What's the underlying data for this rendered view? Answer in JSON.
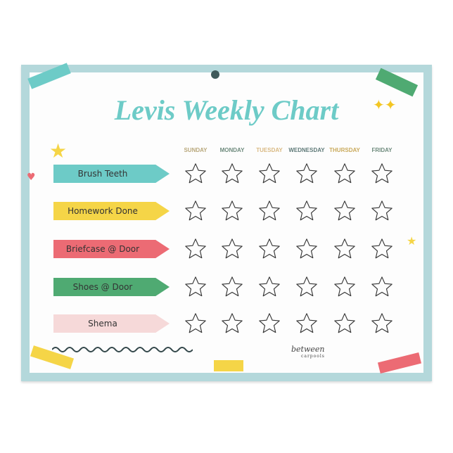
{
  "title": "Levis Weekly Chart",
  "days": [
    "SUNDAY",
    "MONDAY",
    "TUESDAY",
    "WEDNESDAY",
    "THURSDAY",
    "FRIDAY"
  ],
  "day_colors": [
    "#b8a77a",
    "#6d8a7c",
    "#d9b982",
    "#5f7a78",
    "#c9a95a",
    "#6d8a7c"
  ],
  "tasks": [
    {
      "label": "Brush Teeth",
      "color": "#6dcbc7"
    },
    {
      "label": "Homework Done",
      "color": "#f5d547"
    },
    {
      "label": "Briefcase @ Door",
      "color": "#ec6b74"
    },
    {
      "label": "Shoes @ Door",
      "color": "#4faa72"
    },
    {
      "label": "Shema",
      "color": "#f6d9d9"
    }
  ],
  "logo": {
    "line1": "between",
    "line2": "carpools"
  },
  "colors": {
    "border": "#b4d8db",
    "title": "#6dcbc7"
  }
}
